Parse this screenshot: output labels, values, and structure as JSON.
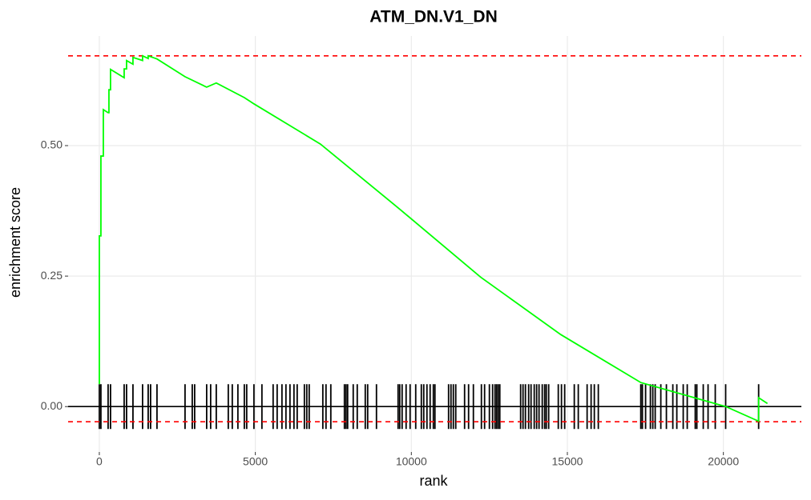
{
  "chart_data": {
    "type": "line",
    "title": "ATM_DN.V1_DN",
    "x_label": "rank",
    "y_label": "enrichment score",
    "xlim": [
      -1000,
      22500
    ],
    "ylim": [
      -0.087,
      0.71
    ],
    "xticks": [
      0,
      5000,
      10000,
      15000,
      20000
    ],
    "yticks": [
      {
        "value": 0,
        "label": "0.00"
      },
      {
        "value": 0.25,
        "label": "0.25"
      },
      {
        "value": 0.5,
        "label": "0.50"
      }
    ],
    "grid": true,
    "series": [
      {
        "color": "#00ff00",
        "x": [
          0,
          0,
          51,
          51,
          128,
          128,
          282,
          308,
          308,
          359,
          359,
          796,
          796,
          873,
          873,
          1078,
          1078,
          1386,
          1386,
          1566,
          1566,
          1849,
          2747,
          3440,
          3748,
          4647,
          4955,
          7086,
          9653,
          12221,
          14788,
          17356,
          20077,
          21130,
          21130,
          21412
        ],
        "values": [
          0.043,
          0.327,
          0.327,
          0.48,
          0.48,
          0.569,
          0.563,
          0.563,
          0.607,
          0.607,
          0.646,
          0.63,
          0.647,
          0.647,
          0.663,
          0.656,
          0.669,
          0.663,
          0.672,
          0.667,
          0.672,
          0.666,
          0.632,
          0.612,
          0.62,
          0.592,
          0.58,
          0.503,
          0.377,
          0.248,
          0.138,
          0.046,
          0.0,
          -0.028,
          0.017,
          0.006
        ]
      }
    ],
    "hits": [
      0,
      51,
      282,
      359,
      796,
      873,
      1078,
      1386,
      1566,
      1643,
      1848,
      2747,
      2978,
      3055,
      3440,
      3568,
      3748,
      4133,
      4261,
      4441,
      4647,
      4723,
      4955,
      5211,
      5570,
      5699,
      5853,
      5981,
      6110,
      6238,
      6341,
      6572,
      6649,
      6726,
      7163,
      7265,
      7419,
      7855,
      7906,
      7958,
      8137,
      8266,
      8523,
      8600,
      8882,
      9575,
      9627,
      9704,
      9832,
      9960,
      10140,
      10320,
      10397,
      10500,
      10602,
      10705,
      10756,
      11193,
      11270,
      11346,
      11423,
      11706,
      11834,
      11988,
      12245,
      12347,
      12501,
      12604,
      12681,
      12732,
      12784,
      12835,
      13502,
      13579,
      13656,
      13759,
      13836,
      13938,
      14015,
      14092,
      14195,
      14272,
      14324,
      14401,
      14709,
      14811,
      14914,
      15222,
      15350,
      15633,
      15761,
      15864,
      15992,
      17353,
      17404,
      17507,
      17661,
      17738,
      17815,
      17995,
      18174,
      18380,
      18508,
      18713,
      18842,
      19098,
      19150,
      19355,
      19509,
      19740,
      20073,
      21130
    ],
    "hits_color": "#000000",
    "hlines": [
      {
        "value": 0,
        "color": "#000000",
        "dashed": false
      },
      {
        "value": 0.672,
        "color": "#ff0000",
        "dashed": true
      },
      {
        "value": -0.029,
        "color": "#ff0000",
        "dashed": true
      }
    ]
  }
}
